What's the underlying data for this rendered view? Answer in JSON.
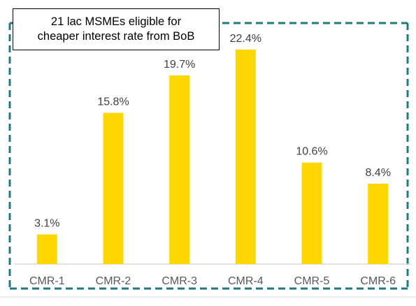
{
  "chart_data": {
    "type": "bar",
    "categories": [
      "CMR-1",
      "CMR-2",
      "CMR-3",
      "CMR-4",
      "CMR-5",
      "CMR-6"
    ],
    "values": [
      3.1,
      15.8,
      19.7,
      22.4,
      10.6,
      8.4
    ],
    "data_labels": [
      "3.1%",
      "15.8%",
      "19.7%",
      "22.4%",
      "10.6%",
      "8.4%"
    ],
    "value_unit": "%",
    "annotation": {
      "lines": [
        "21 lac MSMEs eligible for",
        "cheaper interest rate from BoB"
      ],
      "highlights_categories": [
        "CMR-1",
        "CMR-2",
        "CMR-3",
        "CMR-4",
        "CMR-5",
        "CMR-6"
      ]
    },
    "ylim": [
      0,
      24
    ],
    "y_axis_visible": false,
    "grid": false,
    "legend": "none",
    "bar_color": "#FFD700",
    "highlight_border_color": "#1F7A80"
  }
}
